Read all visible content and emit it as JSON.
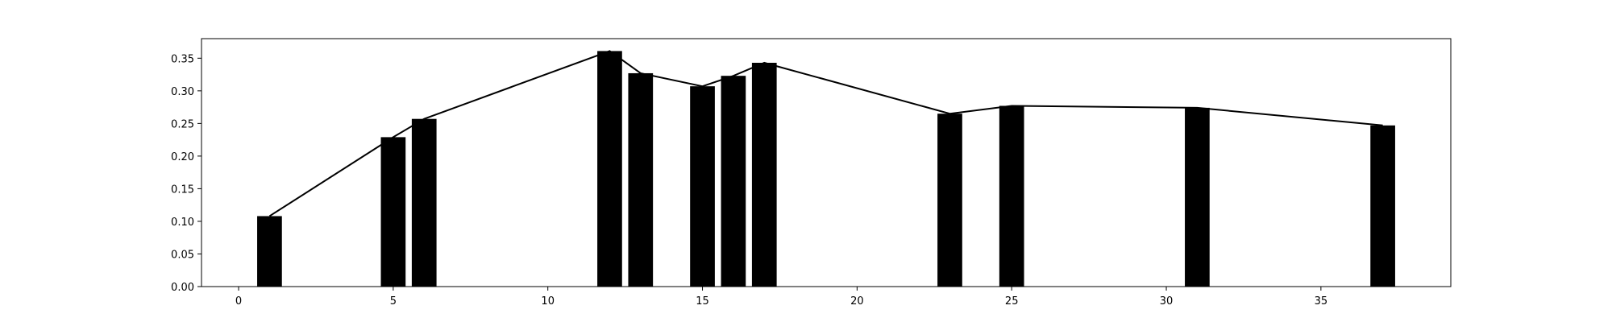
{
  "chart_data": {
    "type": "bar",
    "title": "",
    "xlabel": "",
    "ylabel": "",
    "xlim": [
      -1.2,
      39.2
    ],
    "ylim": [
      0,
      0.38
    ],
    "grid": false,
    "bar_width": 0.8,
    "bar_color": "#000000",
    "line_color": "#000000",
    "x": [
      1,
      5,
      6,
      12,
      13,
      15,
      16,
      17,
      23,
      25,
      31,
      37
    ],
    "values": [
      0.108,
      0.229,
      0.257,
      0.361,
      0.327,
      0.307,
      0.323,
      0.343,
      0.265,
      0.277,
      0.274,
      0.247
    ],
    "series": [
      {
        "type": "bar",
        "values": [
          0.108,
          0.229,
          0.257,
          0.361,
          0.327,
          0.307,
          0.323,
          0.343,
          0.265,
          0.277,
          0.274,
          0.247
        ]
      },
      {
        "type": "line",
        "values": [
          0.108,
          0.229,
          0.257,
          0.361,
          0.327,
          0.307,
          0.323,
          0.343,
          0.265,
          0.277,
          0.274,
          0.247
        ]
      }
    ],
    "x_ticks": [
      0,
      5,
      10,
      15,
      20,
      25,
      30,
      35
    ],
    "x_tick_labels": [
      "0",
      "5",
      "10",
      "15",
      "20",
      "25",
      "30",
      "35"
    ],
    "y_ticks": [
      0,
      0.05,
      0.1,
      0.15,
      0.2,
      0.25,
      0.3,
      0.35
    ],
    "y_tick_labels": [
      "0.00",
      "0.05",
      "0.10",
      "0.15",
      "0.20",
      "0.25",
      "0.30",
      "0.35"
    ]
  }
}
